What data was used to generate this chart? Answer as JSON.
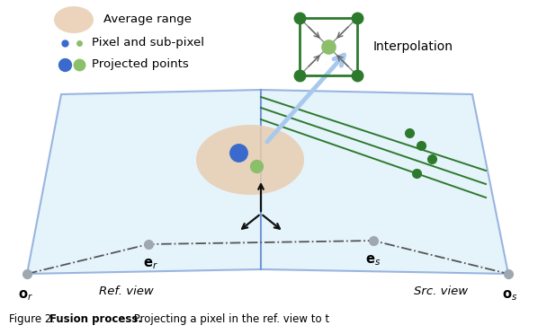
{
  "bg_color": "#ffffff",
  "plane_fill_color": "#cce8f8",
  "plane_edge_color": "#4472c4",
  "plane_alpha": 0.5,
  "avg_range_color": "#e8cdb0",
  "avg_range_alpha": 0.85,
  "blue_dot_color": "#3a6bcc",
  "green_dot_color": "#8bbf6a",
  "green_dark_color": "#2d7a2d",
  "gray_dot_color": "#9fa8b0",
  "interp_box_color": "#2d7a2d",
  "arrow_color": "#a8c8ee",
  "axis_color": "#111111",
  "dashed_color": "#555555",
  "label_or": "$\\mathbf{o}_r$",
  "label_er": "$\\mathbf{e}_r$",
  "label_es": "$\\mathbf{e}_s$",
  "label_os": "$\\mathbf{o}_s$",
  "label_ref": "Ref. view",
  "label_src": "Src. view",
  "label_avg": "Average range",
  "label_pixel": "Pixel and sub-pixel",
  "label_proj": "Projected points",
  "label_interp": "Interpolation",
  "caption_bold": "Fusion process.",
  "caption_rest": " Projecting a pixel in the ref. view to t"
}
